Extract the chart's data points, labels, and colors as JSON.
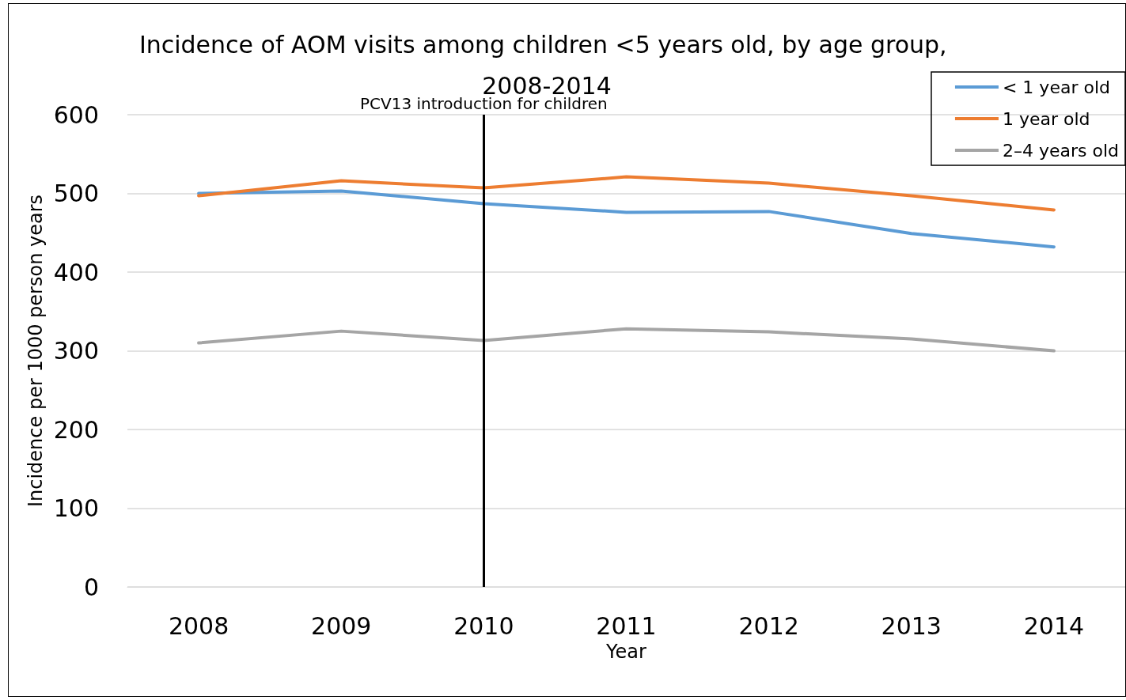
{
  "chart_data": {
    "type": "line",
    "title": "Incidence of AOM visits among children <5 years old, by age group, 2008-2014",
    "xlabel": "Year",
    "ylabel": "Incidence per 1000 person years",
    "categories": [
      "2008",
      "2009",
      "2010",
      "2011",
      "2012",
      "2013",
      "2014"
    ],
    "series": [
      {
        "name": "< 1 year old",
        "color": "#5b9bd5",
        "values": [
          500,
          503,
          487,
          476,
          477,
          449,
          432
        ]
      },
      {
        "name": "1 year old",
        "color": "#ed7d31",
        "values": [
          497,
          516,
          507,
          521,
          513,
          497,
          479
        ]
      },
      {
        "name": "2–4 years old",
        "color": "#a5a5a5",
        "values": [
          310,
          325,
          313,
          328,
          324,
          315,
          300
        ]
      }
    ],
    "ylim": [
      0,
      600
    ],
    "yticks": [
      0,
      100,
      200,
      300,
      400,
      500,
      600
    ],
    "grid": "y",
    "legend": "top right",
    "marker": "none",
    "line_style": "solid",
    "ref_lines": [
      {
        "axis": "x",
        "value": "2010",
        "label": "PCV13 introduction for children",
        "color": "#000000"
      }
    ]
  }
}
